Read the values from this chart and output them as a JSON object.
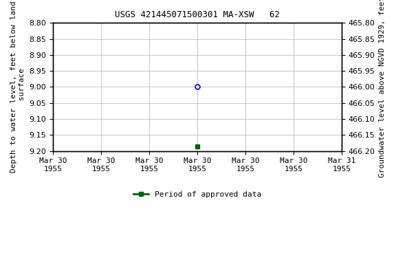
{
  "title": "USGS 421445071500301 MA-XSW   62",
  "ylabel_left": "Depth to water level, feet below land\n surface",
  "ylabel_right": "Groundwater level above NGVD 1929, feet",
  "ylim_left": [
    8.8,
    9.2
  ],
  "ylim_right": [
    466.2,
    465.8
  ],
  "yticks_left": [
    8.8,
    8.85,
    8.9,
    8.95,
    9.0,
    9.05,
    9.1,
    9.15,
    9.2
  ],
  "yticks_right": [
    466.2,
    466.15,
    466.1,
    466.05,
    466.0,
    465.95,
    465.9,
    465.85,
    465.8
  ],
  "xlim": [
    0.0,
    6.0
  ],
  "xtick_positions": [
    0,
    1,
    2,
    3,
    4,
    5,
    6
  ],
  "xtick_labels": [
    "Mar 30\n1955",
    "Mar 30\n1955",
    "Mar 30\n1955",
    "Mar 30\n1955",
    "Mar 30\n1955",
    "Mar 30\n1955",
    "Mar 31\n1955"
  ],
  "data_point_x": 3.0,
  "data_point_y": 9.0,
  "data_point_color": "#0000cc",
  "data_point_marker": "o",
  "data_point_markersize": 5,
  "data_point_fillstyle": "none",
  "approved_point_x": 3.0,
  "approved_point_y": 9.185,
  "approved_point_color": "#006400",
  "approved_point_marker": "s",
  "approved_point_markersize": 4,
  "legend_label": "Period of approved data",
  "legend_color": "#006400",
  "grid_color": "#cccccc",
  "background_color": "#ffffff",
  "title_fontsize": 9,
  "axis_fontsize": 8,
  "tick_fontsize": 8,
  "font_family": "monospace"
}
